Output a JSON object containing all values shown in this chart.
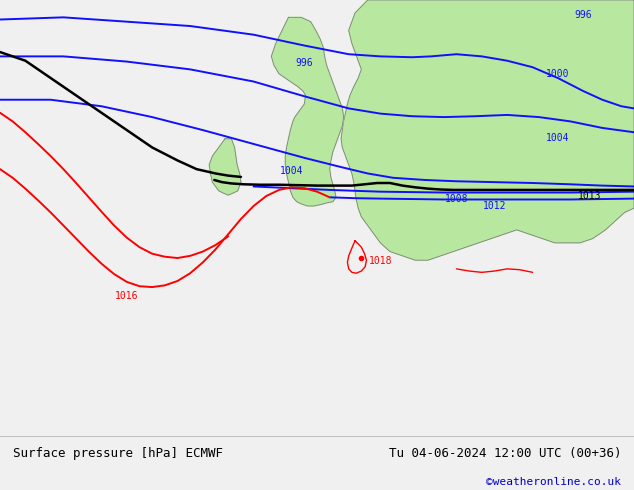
{
  "title_left": "Surface pressure [hPa] ECMWF",
  "title_right": "Tu 04-06-2024 12:00 UTC (00+36)",
  "credit": "©weatheronline.co.uk",
  "bg_ocean": "#d8d8d8",
  "land_color": "#b8e8a0",
  "border_color": "#808080",
  "fig_width": 6.34,
  "fig_height": 4.9,
  "dpi": 100,
  "footer_fontsize": 9,
  "credit_fontsize": 8
}
